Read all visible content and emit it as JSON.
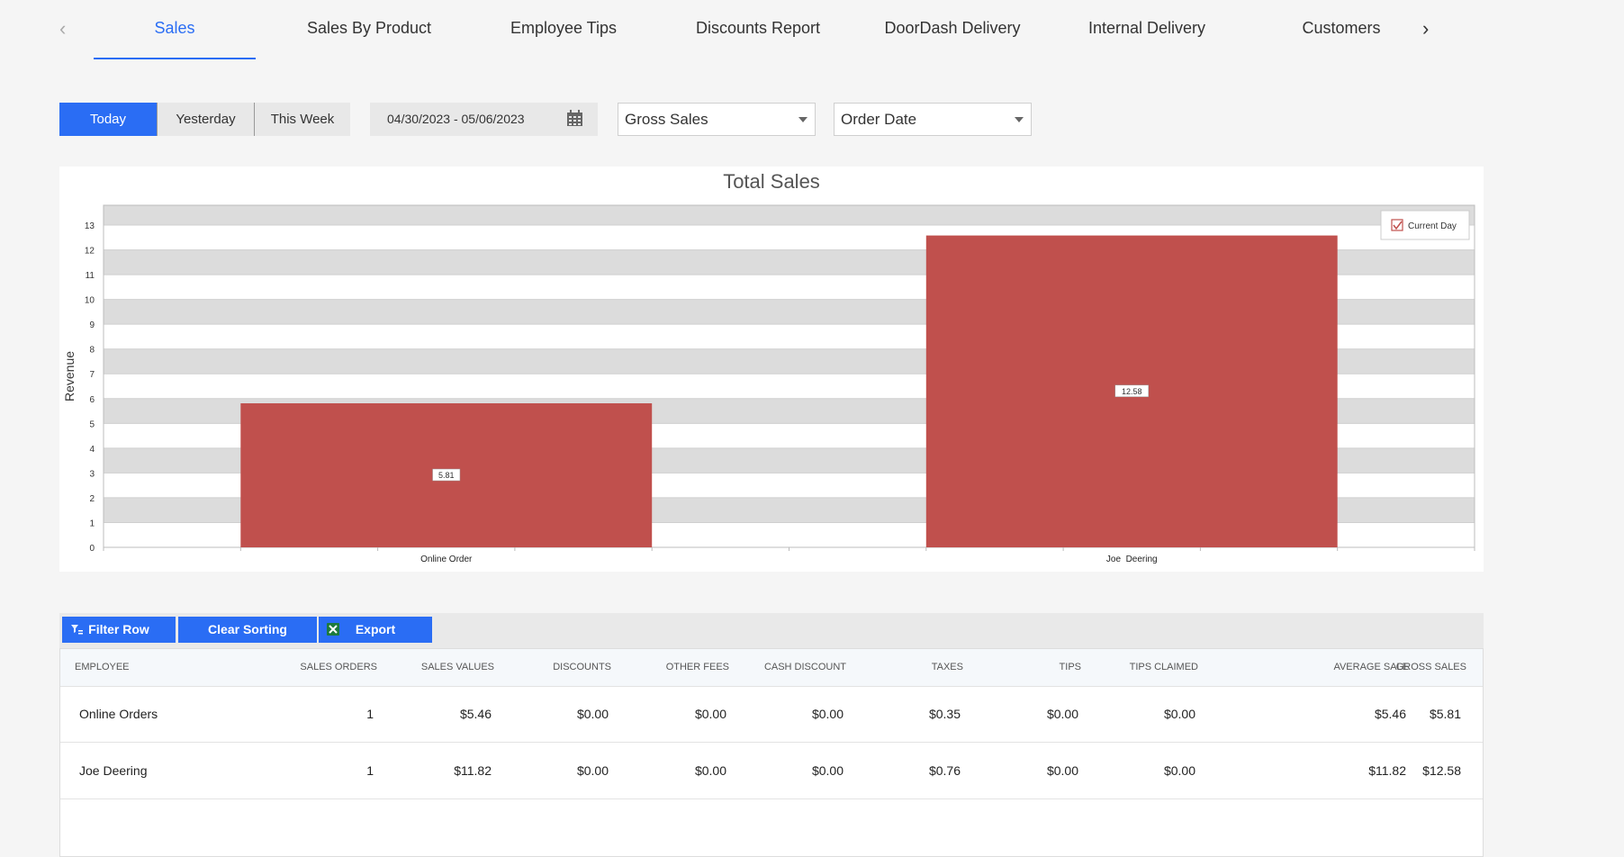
{
  "tabs": {
    "items": [
      "Sales",
      "Sales By Product",
      "Employee Tips",
      "Discounts Report",
      "DoorDash Delivery",
      "Internal Delivery",
      "Customers"
    ],
    "active": "Sales"
  },
  "toolbar": {
    "period_buttons": [
      "Today",
      "Yesterday",
      "This Week"
    ],
    "active_period": "Today",
    "date_range": "04/30/2023 - 05/06/2023",
    "metric_select": "Gross Sales",
    "date_type_select": "Order Date"
  },
  "chart_data": {
    "type": "bar",
    "title": "Total Sales",
    "ylabel": "Revenue",
    "xlabel": "",
    "categories": [
      "Online Order",
      "Joe  Deering"
    ],
    "series": [
      {
        "name": "Current Day",
        "values": [
          5.81,
          12.58
        ],
        "color": "#c0504d"
      }
    ],
    "data_labels": [
      "5.81",
      "12.58"
    ],
    "ylim": [
      0,
      13.8
    ],
    "yticks": [
      0,
      1,
      2,
      3,
      4,
      5,
      6,
      7,
      8,
      9,
      10,
      11,
      12,
      13
    ],
    "grid": true,
    "band_color": "#dcdcdc",
    "legend_position": "top-right",
    "legend_checked": true
  },
  "grid": {
    "buttons": [
      "Filter Row",
      "Clear Sorting",
      "Export"
    ],
    "columns": [
      "EMPLOYEE",
      "SALES ORDERS",
      "SALES VALUES",
      "DISCOUNTS",
      "OTHER FEES",
      "CASH DISCOUNT",
      "TAXES",
      "TIPS",
      "TIPS CLAIMED",
      "AVERAGE SALE",
      "GROSS SALES"
    ],
    "rows": [
      [
        "Online Orders",
        "1",
        "$5.46",
        "$0.00",
        "$0.00",
        "$0.00",
        "$0.35",
        "$0.00",
        "$0.00",
        "$5.46",
        "$5.81"
      ],
      [
        "Joe Deering",
        "1",
        "$11.82",
        "$0.00",
        "$0.00",
        "$0.00",
        "$0.76",
        "$0.00",
        "$0.00",
        "$11.82",
        "$12.58"
      ]
    ]
  },
  "colors": {
    "accent": "#2a6df4",
    "bar": "#c0504d",
    "background": "#f5f5f5"
  }
}
